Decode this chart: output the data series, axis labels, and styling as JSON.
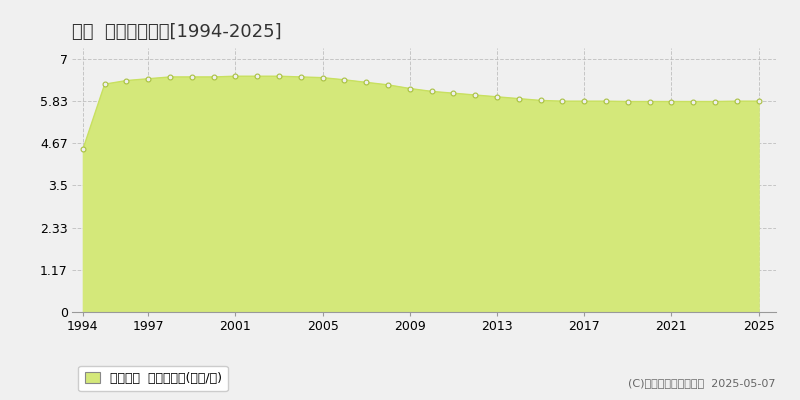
{
  "title": "綾町  公示地価推移[1994-2025]",
  "years": [
    1994,
    1995,
    1996,
    1997,
    1998,
    1999,
    2000,
    2001,
    2002,
    2003,
    2004,
    2005,
    2006,
    2007,
    2008,
    2009,
    2010,
    2011,
    2012,
    2013,
    2014,
    2015,
    2016,
    2017,
    2018,
    2019,
    2020,
    2021,
    2022,
    2023,
    2024,
    2025
  ],
  "values": [
    4.5,
    6.3,
    6.4,
    6.45,
    6.5,
    6.5,
    6.5,
    6.52,
    6.52,
    6.52,
    6.5,
    6.48,
    6.42,
    6.35,
    6.28,
    6.18,
    6.1,
    6.05,
    6.0,
    5.95,
    5.9,
    5.85,
    5.83,
    5.83,
    5.83,
    5.82,
    5.82,
    5.82,
    5.82,
    5.82,
    5.83,
    5.83
  ],
  "line_color": "#c8e060",
  "fill_color": "#d4e87a",
  "marker_face_color": "#f0f0f0",
  "marker_edge_color": "#a8c040",
  "background_color": "#f0f0f0",
  "grid_color": "#bbbbbb",
  "yticks": [
    0,
    1.17,
    2.33,
    3.5,
    4.67,
    5.83,
    7
  ],
  "ytick_labels": [
    "0",
    "1.17",
    "2.33",
    "3.5",
    "4.67",
    "5.83",
    "7"
  ],
  "xticks": [
    1994,
    1997,
    2001,
    2005,
    2009,
    2013,
    2017,
    2021,
    2025
  ],
  "xlim": [
    1993.5,
    2025.8
  ],
  "ylim": [
    0,
    7.3
  ],
  "legend_label": "公示地価  平均坪単価(万円/坪)",
  "copyright_text": "(C)土地価格ドットコム  2025-05-07",
  "title_fontsize": 13,
  "tick_fontsize": 9,
  "legend_fontsize": 9,
  "copyright_fontsize": 8
}
